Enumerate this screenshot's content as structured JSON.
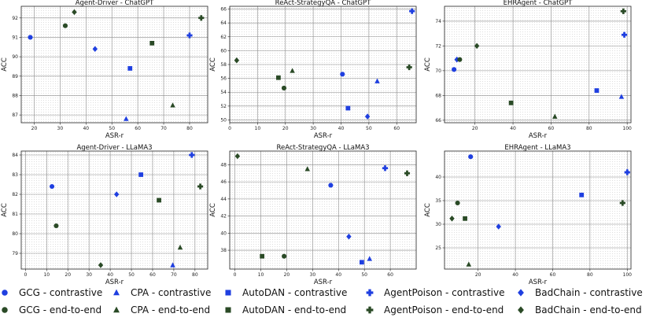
{
  "colors": {
    "contrastive": "#1f3fe0",
    "end_to_end": "#2a4a26"
  },
  "legend": {
    "entries": [
      {
        "label": "GCG - contrastive",
        "marker": "circle",
        "group": "contrastive"
      },
      {
        "label": "CPA - contrastive",
        "marker": "triangle",
        "group": "contrastive"
      },
      {
        "label": "AutoDAN - contrastive",
        "marker": "square",
        "group": "contrastive"
      },
      {
        "label": "AgentPoison - contrastive",
        "marker": "plus",
        "group": "contrastive"
      },
      {
        "label": "BadChain - contrastive",
        "marker": "diamond",
        "group": "contrastive"
      },
      {
        "label": "GCG - end-to-end",
        "marker": "circle",
        "group": "end_to_end"
      },
      {
        "label": "CPA - end-to-end",
        "marker": "triangle",
        "group": "end_to_end"
      },
      {
        "label": "AutoDAN - end-to-end",
        "marker": "square",
        "group": "end_to_end"
      },
      {
        "label": "AgentPoison - end-to-end",
        "marker": "plus",
        "group": "end_to_end"
      },
      {
        "label": "BadChain - end-to-end",
        "marker": "diamond",
        "group": "end_to_end"
      }
    ]
  },
  "chart_data": [
    {
      "type": "scatter",
      "title": "Agent-Driver - ChatGPT",
      "xlabel": "ASR-r",
      "ylabel": "ACC",
      "xlim": [
        15,
        87
      ],
      "ylim": [
        86.6,
        92.6
      ],
      "xticks": [
        20,
        30,
        40,
        50,
        60,
        70,
        80
      ],
      "yticks": [
        87,
        88,
        89,
        90,
        91,
        92
      ],
      "grid": true,
      "points": [
        {
          "method": "GCG",
          "group": "contrastive",
          "x": 18.5,
          "y": 91.0
        },
        {
          "method": "CPA",
          "group": "contrastive",
          "x": 55.5,
          "y": 86.8
        },
        {
          "method": "AutoDAN",
          "group": "contrastive",
          "x": 57,
          "y": 89.4
        },
        {
          "method": "AgentPoison",
          "group": "contrastive",
          "x": 80,
          "y": 91.1
        },
        {
          "method": "BadChain",
          "group": "contrastive",
          "x": 43.5,
          "y": 90.4
        },
        {
          "method": "GCG",
          "group": "end_to_end",
          "x": 32,
          "y": 91.6
        },
        {
          "method": "CPA",
          "group": "end_to_end",
          "x": 73.5,
          "y": 87.5
        },
        {
          "method": "AutoDAN",
          "group": "end_to_end",
          "x": 65.5,
          "y": 90.7
        },
        {
          "method": "AgentPoison",
          "group": "end_to_end",
          "x": 84.5,
          "y": 92.0
        },
        {
          "method": "BadChain",
          "group": "end_to_end",
          "x": 35.5,
          "y": 92.3
        }
      ]
    },
    {
      "type": "scatter",
      "title": "ReAct-StrategyQA - ChatGPT",
      "xlabel": "ASR-r",
      "ylabel": "ACC",
      "xlim": [
        0,
        67
      ],
      "ylim": [
        49.6,
        66.4
      ],
      "xticks": [
        0,
        10,
        20,
        30,
        40,
        50,
        60
      ],
      "yticks": [
        50,
        52,
        54,
        56,
        58,
        60,
        62,
        64,
        66
      ],
      "grid": true,
      "points": [
        {
          "method": "GCG",
          "group": "contrastive",
          "x": 40.5,
          "y": 56.6
        },
        {
          "method": "CPA",
          "group": "contrastive",
          "x": 53,
          "y": 55.6
        },
        {
          "method": "AutoDAN",
          "group": "contrastive",
          "x": 42.5,
          "y": 51.7
        },
        {
          "method": "AgentPoison",
          "group": "contrastive",
          "x": 65.5,
          "y": 65.7
        },
        {
          "method": "BadChain",
          "group": "contrastive",
          "x": 49.5,
          "y": 50.5
        },
        {
          "method": "GCG",
          "group": "end_to_end",
          "x": 19.5,
          "y": 54.6
        },
        {
          "method": "CPA",
          "group": "end_to_end",
          "x": 22.5,
          "y": 57.1
        },
        {
          "method": "AutoDAN",
          "group": "end_to_end",
          "x": 17.5,
          "y": 56.1
        },
        {
          "method": "AgentPoison",
          "group": "end_to_end",
          "x": 64.5,
          "y": 57.6
        },
        {
          "method": "BadChain",
          "group": "end_to_end",
          "x": 2.5,
          "y": 58.6
        }
      ]
    },
    {
      "type": "scatter",
      "title": "EHRAgent - ChatGPT",
      "xlabel": "ASR-r",
      "ylabel": "ACC",
      "xlim": [
        4,
        102
      ],
      "ylim": [
        65.8,
        75.2
      ],
      "xticks": [
        20,
        40,
        60,
        80,
        100
      ],
      "yticks": [
        66,
        68,
        70,
        72,
        74
      ],
      "grid": true,
      "points": [
        {
          "method": "GCG",
          "group": "contrastive",
          "x": 9,
          "y": 70.1
        },
        {
          "method": "CPA",
          "group": "contrastive",
          "x": 97,
          "y": 67.9
        },
        {
          "method": "AutoDAN",
          "group": "contrastive",
          "x": 84,
          "y": 68.4
        },
        {
          "method": "AgentPoison",
          "group": "contrastive",
          "x": 98.5,
          "y": 72.9
        },
        {
          "method": "BadChain",
          "group": "contrastive",
          "x": 10.5,
          "y": 70.9
        },
        {
          "method": "GCG",
          "group": "end_to_end",
          "x": 12,
          "y": 70.9
        },
        {
          "method": "CPA",
          "group": "end_to_end",
          "x": 62,
          "y": 66.3
        },
        {
          "method": "AutoDAN",
          "group": "end_to_end",
          "x": 39,
          "y": 67.4
        },
        {
          "method": "AgentPoison",
          "group": "end_to_end",
          "x": 98,
          "y": 74.8
        },
        {
          "method": "BadChain",
          "group": "end_to_end",
          "x": 21,
          "y": 72.0
        }
      ]
    },
    {
      "type": "scatter",
      "title": "Agent-Driver - LLaMA3",
      "xlabel": "ASR-r",
      "ylabel": "ACC",
      "xlim": [
        -2,
        86
      ],
      "ylim": [
        78.2,
        84.2
      ],
      "xticks": [
        0,
        10,
        20,
        30,
        40,
        50,
        60,
        70,
        80
      ],
      "yticks": [
        79,
        80,
        81,
        82,
        83,
        84
      ],
      "grid": true,
      "points": [
        {
          "method": "GCG",
          "group": "contrastive",
          "x": 12.5,
          "y": 82.4
        },
        {
          "method": "CPA",
          "group": "contrastive",
          "x": 69.5,
          "y": 78.4
        },
        {
          "method": "AutoDAN",
          "group": "contrastive",
          "x": 54.5,
          "y": 83.0
        },
        {
          "method": "AgentPoison",
          "group": "contrastive",
          "x": 78.5,
          "y": 84.0
        },
        {
          "method": "BadChain",
          "group": "contrastive",
          "x": 43,
          "y": 82.0
        },
        {
          "method": "GCG",
          "group": "end_to_end",
          "x": 14.5,
          "y": 80.4
        },
        {
          "method": "CPA",
          "group": "end_to_end",
          "x": 73,
          "y": 79.3
        },
        {
          "method": "AutoDAN",
          "group": "end_to_end",
          "x": 63,
          "y": 81.7
        },
        {
          "method": "AgentPoison",
          "group": "end_to_end",
          "x": 82.5,
          "y": 82.4
        },
        {
          "method": "BadChain",
          "group": "end_to_end",
          "x": 35.5,
          "y": 78.4
        }
      ]
    },
    {
      "type": "scatter",
      "title": "ReAct-StrategyQA - LLaMA3",
      "xlabel": "ASR-r",
      "ylabel": "ACC",
      "xlim": [
        -2,
        70
      ],
      "ylim": [
        35.8,
        49.6
      ],
      "xticks": [
        0,
        10,
        20,
        30,
        40,
        50,
        60
      ],
      "yticks": [
        38,
        40,
        42,
        44,
        46,
        48
      ],
      "grid": true,
      "points": [
        {
          "method": "GCG",
          "group": "contrastive",
          "x": 37,
          "y": 45.6
        },
        {
          "method": "CPA",
          "group": "contrastive",
          "x": 52,
          "y": 37.0
        },
        {
          "method": "AutoDAN",
          "group": "contrastive",
          "x": 49,
          "y": 36.6
        },
        {
          "method": "AgentPoison",
          "group": "contrastive",
          "x": 58,
          "y": 47.6
        },
        {
          "method": "BadChain",
          "group": "contrastive",
          "x": 44,
          "y": 39.6
        },
        {
          "method": "GCG",
          "group": "end_to_end",
          "x": 19,
          "y": 37.3
        },
        {
          "method": "CPA",
          "group": "end_to_end",
          "x": 28,
          "y": 47.5
        },
        {
          "method": "AutoDAN",
          "group": "end_to_end",
          "x": 10.5,
          "y": 37.3
        },
        {
          "method": "AgentPoison",
          "group": "end_to_end",
          "x": 66.5,
          "y": 47.0
        },
        {
          "method": "BadChain",
          "group": "end_to_end",
          "x": 1,
          "y": 49.0
        }
      ]
    },
    {
      "type": "scatter",
      "title": "EHRAgent - LLaMA3",
      "xlabel": "ASR-r",
      "ylabel": "ACC",
      "xlim": [
        2,
        102
      ],
      "ylim": [
        20.5,
        45.5
      ],
      "xticks": [
        20,
        40,
        60,
        80,
        100
      ],
      "yticks": [
        25,
        30,
        35,
        40
      ],
      "grid": true,
      "points": [
        {
          "method": "GCG",
          "group": "contrastive",
          "x": 16,
          "y": 44.3
        },
        {
          "method": "CPA",
          "group": "contrastive",
          "x": 100,
          "y": 41.2
        },
        {
          "method": "AutoDAN",
          "group": "contrastive",
          "x": 75.5,
          "y": 36.2
        },
        {
          "method": "AgentPoison",
          "group": "contrastive",
          "x": 100,
          "y": 41.0
        },
        {
          "method": "BadChain",
          "group": "contrastive",
          "x": 31,
          "y": 29.5
        },
        {
          "method": "GCG",
          "group": "end_to_end",
          "x": 9,
          "y": 34.5
        },
        {
          "method": "CPA",
          "group": "end_to_end",
          "x": 15,
          "y": 21.5
        },
        {
          "method": "AutoDAN",
          "group": "end_to_end",
          "x": 13,
          "y": 31.2
        },
        {
          "method": "AgentPoison",
          "group": "end_to_end",
          "x": 97.5,
          "y": 34.5
        },
        {
          "method": "BadChain",
          "group": "end_to_end",
          "x": 6,
          "y": 31.2
        }
      ]
    }
  ]
}
